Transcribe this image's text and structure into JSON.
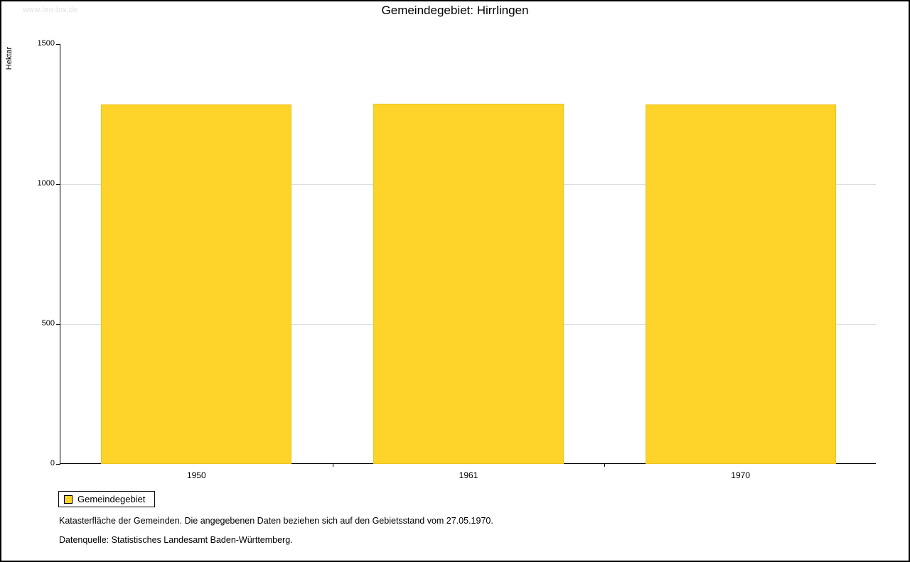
{
  "watermark": "www.leo-bw.de",
  "chart_data": {
    "type": "bar",
    "title": "Gemeindegebiet: Hirrlingen",
    "ylabel": "Hektar",
    "xlabel": "",
    "categories": [
      "1950",
      "1961",
      "1970"
    ],
    "values": [
      1283,
      1286,
      1283
    ],
    "ylim": [
      0,
      1500
    ],
    "yticks": [
      0,
      500,
      1000,
      1500
    ],
    "gridlines": [
      500,
      1000
    ],
    "grid": "horizontal",
    "bar_color": "#FDD32A",
    "bar_border": "#EFC31C",
    "legend_position": "bottom-left",
    "legend": [
      {
        "label": "Gemeindegebiet",
        "color": "#FDD32A"
      }
    ]
  },
  "notes": [
    "Katasterfläche der Gemeinden. Die angegebenen Daten beziehen sich auf den Gebietsstand vom 27.05.1970.",
    "Datenquelle: Statistisches Landesamt Baden-Württemberg."
  ]
}
